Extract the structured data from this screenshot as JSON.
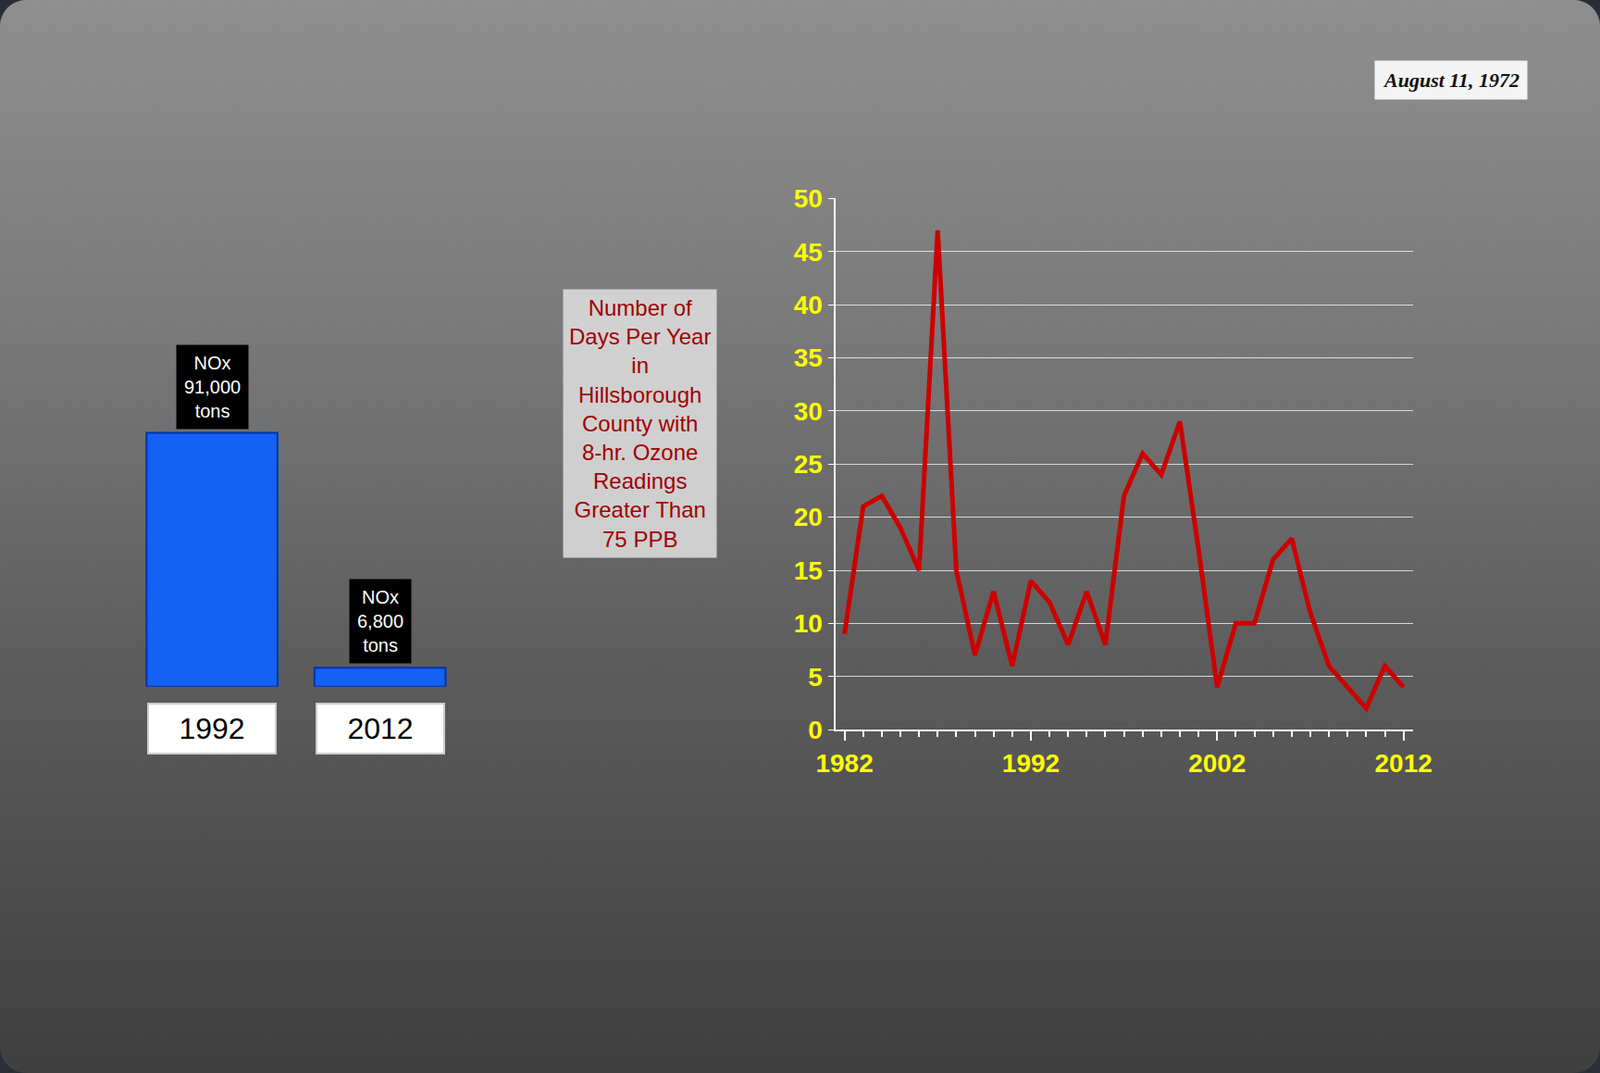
{
  "photo_label": "August 11, 1972",
  "chart_data": [
    {
      "type": "bar",
      "categories": [
        "1992",
        "2012"
      ],
      "values": [
        91000,
        6800
      ],
      "value_labels": [
        "NOx 91,000 tons",
        "NOx 6,800 tons"
      ],
      "data_labels": true,
      "color": "#1560f5",
      "ylim": [
        0,
        100000
      ],
      "tick_labels": "x",
      "grid": false
    },
    {
      "type": "line",
      "y_label": "Number of Days Per Year in Hillsborough County with 8-hr. Ozone Readings Greater Than 75 PPB",
      "x": [
        1982,
        1983,
        1984,
        1985,
        1986,
        1987,
        1988,
        1989,
        1990,
        1991,
        1992,
        1993,
        1994,
        1995,
        1996,
        1997,
        1998,
        1999,
        2000,
        2001,
        2002,
        2003,
        2004,
        2005,
        2006,
        2007,
        2008,
        2009,
        2010,
        2011,
        2012
      ],
      "values": [
        9,
        21,
        22,
        19,
        15,
        47,
        15,
        7,
        13,
        6,
        14,
        12,
        8,
        13,
        8,
        22,
        26,
        24,
        29,
        17,
        4,
        10,
        10,
        16,
        18,
        11,
        6,
        4,
        2,
        6,
        4
      ],
      "color": "#cc0000",
      "xlim": [
        1981.5,
        2012.5
      ],
      "xticks": [
        1982,
        1992,
        2002,
        2012
      ],
      "ylim": [
        0,
        50
      ],
      "yticks": [
        0,
        5,
        10,
        15,
        20,
        25,
        30,
        35,
        40,
        45,
        50
      ],
      "grid": true
    }
  ]
}
